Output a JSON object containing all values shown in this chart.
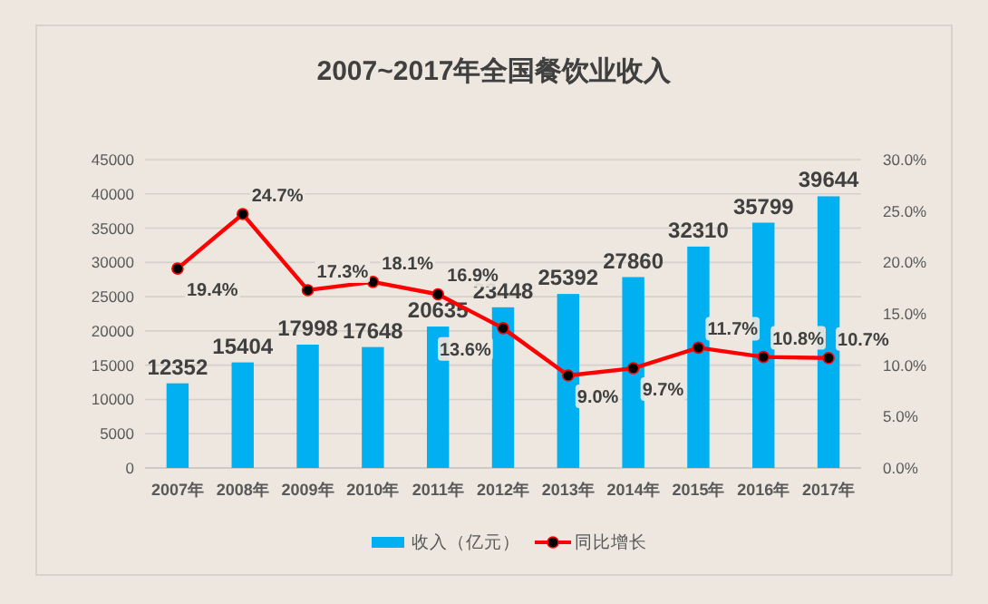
{
  "chart_data": {
    "type": "bar",
    "title": "2007~2017年全国餐饮业收入",
    "categories": [
      "2007年",
      "2008年",
      "2009年",
      "2010年",
      "2011年",
      "2012年",
      "2013年",
      "2014年",
      "2015年",
      "2016年",
      "2017年"
    ],
    "series": [
      {
        "name": "收入（亿元）",
        "color": "#00b0f0",
        "values": [
          12352,
          15404,
          17998,
          17648,
          20635,
          23448,
          25392,
          27860,
          32310,
          35799,
          39644
        ],
        "value_labels": [
          "12352",
          "15404",
          "17998",
          "17648",
          "20635",
          "23448",
          "25392",
          "27860",
          "32310",
          "35799",
          "39644"
        ]
      },
      {
        "name": "同比增长",
        "type": "line",
        "axis": "y2",
        "color": "#ff0000",
        "marker": "circle",
        "values": [
          19.4,
          24.7,
          17.3,
          18.1,
          16.9,
          13.6,
          9.0,
          9.7,
          11.7,
          10.8,
          10.7
        ],
        "value_labels": [
          "19.4%",
          "24.7%",
          "17.3%",
          "18.1%",
          "16.9%",
          "13.6%",
          "9.0%",
          "9.7%",
          "11.7%",
          "10.8%",
          "10.7%"
        ]
      }
    ],
    "ylim": [
      0,
      45000
    ],
    "yticks": [
      0,
      5000,
      10000,
      15000,
      20000,
      25000,
      30000,
      35000,
      40000,
      45000
    ],
    "y2lim": [
      0,
      30
    ],
    "y2ticks": [
      {
        "value": 0,
        "label": "0.0%"
      },
      {
        "value": 5,
        "label": "5.0%"
      },
      {
        "value": 10,
        "label": "10.0%"
      },
      {
        "value": 15,
        "label": "15.0%"
      },
      {
        "value": 20,
        "label": "20.0%"
      },
      {
        "value": 25,
        "label": "25.0%"
      },
      {
        "value": 30,
        "label": "30.0%"
      }
    ],
    "grid": "y",
    "legend": "bottom"
  }
}
